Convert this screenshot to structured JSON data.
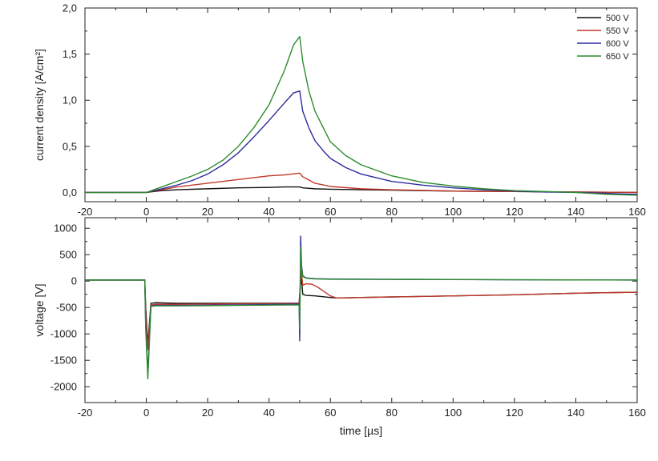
{
  "chart_data": [
    {
      "type": "line",
      "panel": "top",
      "title": "",
      "xlabel": "",
      "ylabel": "current density [A/cm²]",
      "xlim": [
        -20,
        160
      ],
      "ylim": [
        -0.1,
        2.0
      ],
      "x_ticks": [
        -20,
        0,
        20,
        40,
        60,
        80,
        100,
        120,
        140,
        160
      ],
      "x_tick_labels": [
        "-20",
        "0",
        "20",
        "40",
        "60",
        "80",
        "100",
        "120",
        "140",
        "160"
      ],
      "y_ticks": [
        0.0,
        0.5,
        1.0,
        1.5,
        2.0
      ],
      "y_tick_labels": [
        "0,0",
        "0,5",
        "1,0",
        "1,5",
        "2,0"
      ],
      "grid": false,
      "legend_position": "top-right",
      "series": [
        {
          "name": "500 V",
          "color": "#111111",
          "x": [
            -20,
            -5,
            0,
            5,
            10,
            20,
            30,
            40,
            45,
            50,
            51,
            55,
            60,
            70,
            80,
            100,
            120,
            140,
            160
          ],
          "y": [
            0,
            0,
            0,
            0.02,
            0.03,
            0.04,
            0.05,
            0.055,
            0.06,
            0.06,
            0.05,
            0.04,
            0.035,
            0.03,
            0.025,
            0.015,
            0.01,
            0.005,
            0
          ]
        },
        {
          "name": "550 V",
          "color": "#c0392b",
          "x": [
            -20,
            -5,
            0,
            5,
            10,
            20,
            30,
            40,
            45,
            50,
            51,
            55,
            60,
            70,
            80,
            100,
            120,
            140,
            160
          ],
          "y": [
            0,
            0,
            0,
            0.03,
            0.06,
            0.1,
            0.14,
            0.18,
            0.19,
            0.21,
            0.17,
            0.1,
            0.065,
            0.04,
            0.03,
            0.015,
            0.01,
            0.005,
            0
          ]
        },
        {
          "name": "600 V",
          "color": "#2c2c9e",
          "x": [
            -20,
            -5,
            0,
            5,
            10,
            15,
            20,
            25,
            30,
            35,
            40,
            45,
            48,
            50,
            51,
            53,
            55,
            58,
            60,
            65,
            70,
            80,
            90,
            100,
            110,
            120,
            130,
            140,
            150,
            160
          ],
          "y": [
            0,
            0,
            0,
            0.04,
            0.08,
            0.13,
            0.2,
            0.3,
            0.43,
            0.6,
            0.78,
            0.97,
            1.08,
            1.1,
            0.88,
            0.7,
            0.56,
            0.44,
            0.37,
            0.27,
            0.2,
            0.12,
            0.08,
            0.05,
            0.03,
            0.015,
            0.005,
            0,
            -0.01,
            -0.02
          ]
        },
        {
          "name": "650 V",
          "color": "#2e8b2e",
          "x": [
            -20,
            -5,
            0,
            5,
            10,
            15,
            20,
            25,
            30,
            35,
            40,
            45,
            48,
            50,
            51,
            53,
            55,
            58,
            60,
            65,
            70,
            80,
            90,
            100,
            110,
            120,
            130,
            140,
            150,
            160
          ],
          "y": [
            0,
            0,
            0,
            0.06,
            0.12,
            0.18,
            0.25,
            0.35,
            0.5,
            0.7,
            0.95,
            1.32,
            1.6,
            1.69,
            1.42,
            1.1,
            0.88,
            0.68,
            0.55,
            0.4,
            0.3,
            0.18,
            0.11,
            0.07,
            0.04,
            0.02,
            0.01,
            0,
            -0.02,
            -0.03
          ]
        }
      ]
    },
    {
      "type": "line",
      "panel": "bottom",
      "title": "",
      "xlabel": "time [µs]",
      "ylabel": "voltage [V]",
      "xlim": [
        -20,
        160
      ],
      "ylim": [
        -2300,
        1200
      ],
      "x_ticks": [
        -20,
        0,
        20,
        40,
        60,
        80,
        100,
        120,
        140,
        160
      ],
      "x_tick_labels": [
        "-20",
        "0",
        "20",
        "40",
        "60",
        "80",
        "100",
        "120",
        "140",
        "160"
      ],
      "y_ticks": [
        -2000,
        -1500,
        -1000,
        -500,
        0,
        500,
        1000
      ],
      "y_tick_labels": [
        "-2000",
        "-1500",
        "-1000",
        "-500",
        "0",
        "500",
        "1000"
      ],
      "grid": false,
      "series": [
        {
          "name": "500 V",
          "color": "#111111",
          "x": [
            -20,
            -0.5,
            -0.2,
            0.5,
            1.5,
            3,
            10,
            30,
            49.8,
            50,
            50.5,
            51,
            52,
            55,
            60,
            62,
            80,
            100,
            120,
            140,
            160
          ],
          "y": [
            20,
            20,
            -500,
            -1200,
            -420,
            -410,
            -420,
            -420,
            -420,
            -250,
            100,
            -250,
            -270,
            -280,
            -310,
            -320,
            -300,
            -280,
            -260,
            -230,
            -210
          ]
        },
        {
          "name": "550 V",
          "color": "#c0392b",
          "x": [
            -20,
            -0.5,
            -0.2,
            0.5,
            1.5,
            3,
            10,
            30,
            49.8,
            50,
            50.5,
            51,
            52,
            54,
            56,
            58,
            60,
            62,
            80,
            100,
            120,
            140,
            160
          ],
          "y": [
            20,
            20,
            -600,
            -1300,
            -450,
            -440,
            -440,
            -430,
            -430,
            -300,
            200,
            -80,
            -50,
            -60,
            -120,
            -200,
            -280,
            -320,
            -300,
            -280,
            -260,
            -230,
            -210
          ]
        },
        {
          "name": "600 V",
          "color": "#2c2c9e",
          "x": [
            -20,
            -0.5,
            -0.2,
            0.5,
            1.5,
            3,
            10,
            30,
            49.8,
            50,
            50.3,
            50.6,
            51,
            52,
            55,
            60,
            80,
            100,
            120,
            140,
            160
          ],
          "y": [
            20,
            20,
            -800,
            -1750,
            -470,
            -460,
            -460,
            -450,
            -440,
            -1130,
            850,
            300,
            100,
            60,
            45,
            40,
            35,
            30,
            25,
            22,
            20
          ]
        },
        {
          "name": "650 V",
          "color": "#2e8b2e",
          "x": [
            -20,
            -0.5,
            -0.2,
            0.5,
            1.5,
            3,
            10,
            30,
            49.8,
            50,
            50.3,
            50.6,
            51,
            52,
            55,
            60,
            80,
            100,
            120,
            140,
            160
          ],
          "y": [
            20,
            20,
            -900,
            -1850,
            -480,
            -470,
            -470,
            -460,
            -450,
            -900,
            650,
            250,
            90,
            55,
            40,
            35,
            30,
            28,
            25,
            22,
            20
          ]
        }
      ]
    }
  ]
}
